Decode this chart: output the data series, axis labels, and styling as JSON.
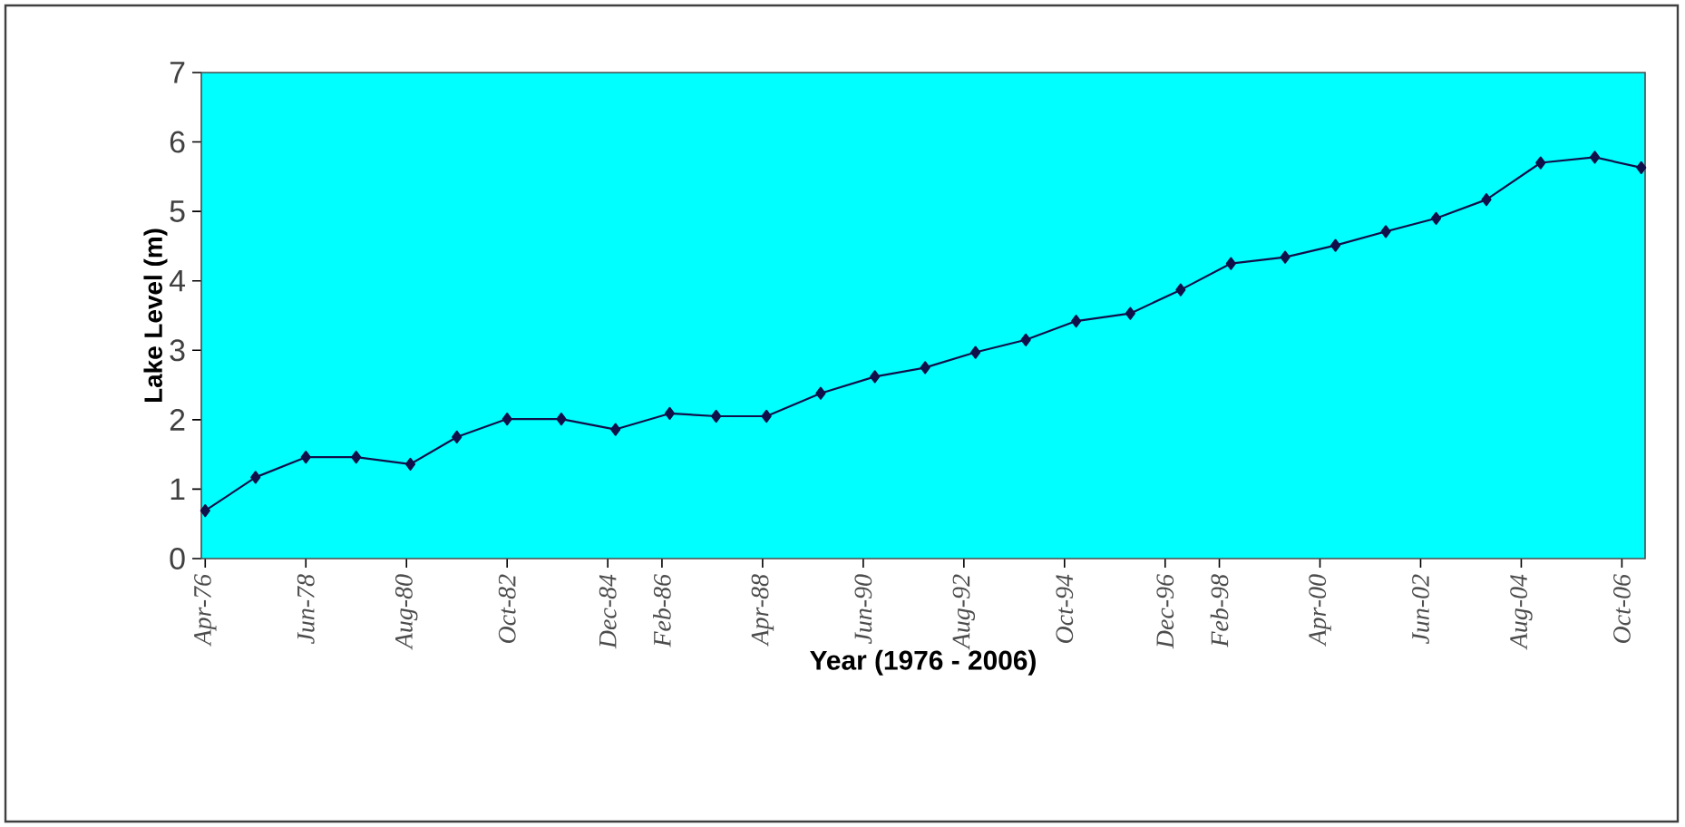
{
  "chart_data": {
    "type": "line",
    "xlabel": "Year (1976 - 2006)",
    "ylabel": "Lake Level (m)",
    "x": [
      "1976-04",
      "1977-05",
      "1978-06",
      "1979-07",
      "1980-09",
      "1981-09",
      "1982-10",
      "1983-12",
      "1985-02",
      "1986-04",
      "1987-04",
      "1988-05",
      "1989-07",
      "1990-09",
      "1991-10",
      "1992-11",
      "1993-12",
      "1995-01",
      "1996-03",
      "1997-04",
      "1998-05",
      "1999-07",
      "2000-08",
      "2001-09",
      "2002-10",
      "2003-11",
      "2005-01",
      "2006-03",
      "2007-03"
    ],
    "series": [
      {
        "color": "#10104a",
        "values": [
          0.69,
          1.17,
          1.46,
          1.46,
          1.36,
          1.75,
          2.01,
          2.01,
          1.86,
          2.09,
          2.05,
          2.05,
          2.38,
          2.62,
          2.75,
          2.97,
          3.15,
          3.42,
          3.53,
          3.87,
          4.25,
          4.34,
          4.51,
          4.71,
          4.9,
          5.17,
          5.7,
          5.78,
          5.63
        ]
      }
    ],
    "xlim": [
      "1976-03",
      "2007-04"
    ],
    "ylim": [
      0,
      7
    ],
    "yticks": [
      0,
      1,
      2,
      3,
      4,
      5,
      6,
      7
    ],
    "xticks": [
      {
        "value": "1976-04",
        "label": "Apr-76"
      },
      {
        "value": "1978-06",
        "label": "Jun-78"
      },
      {
        "value": "1980-08",
        "label": "Aug-80"
      },
      {
        "value": "1982-10",
        "label": "Oct-82"
      },
      {
        "value": "1984-12",
        "label": "Dec-84"
      },
      {
        "value": "1986-02",
        "label": "Feb-86"
      },
      {
        "value": "1988-04",
        "label": "Apr-88"
      },
      {
        "value": "1990-06",
        "label": "Jun-90"
      },
      {
        "value": "1992-08",
        "label": "Aug-92"
      },
      {
        "value": "1994-10",
        "label": "Oct-94"
      },
      {
        "value": "1996-12",
        "label": "Dec-96"
      },
      {
        "value": "1998-02",
        "label": "Feb-98"
      },
      {
        "value": "2000-04",
        "label": "Apr-00"
      },
      {
        "value": "2002-06",
        "label": "Jun-02"
      },
      {
        "value": "2004-08",
        "label": "Aug-04"
      },
      {
        "value": "2006-10",
        "label": "Oct-06"
      }
    ],
    "marker": "diamond",
    "line_style": "solid",
    "grid": false
  }
}
